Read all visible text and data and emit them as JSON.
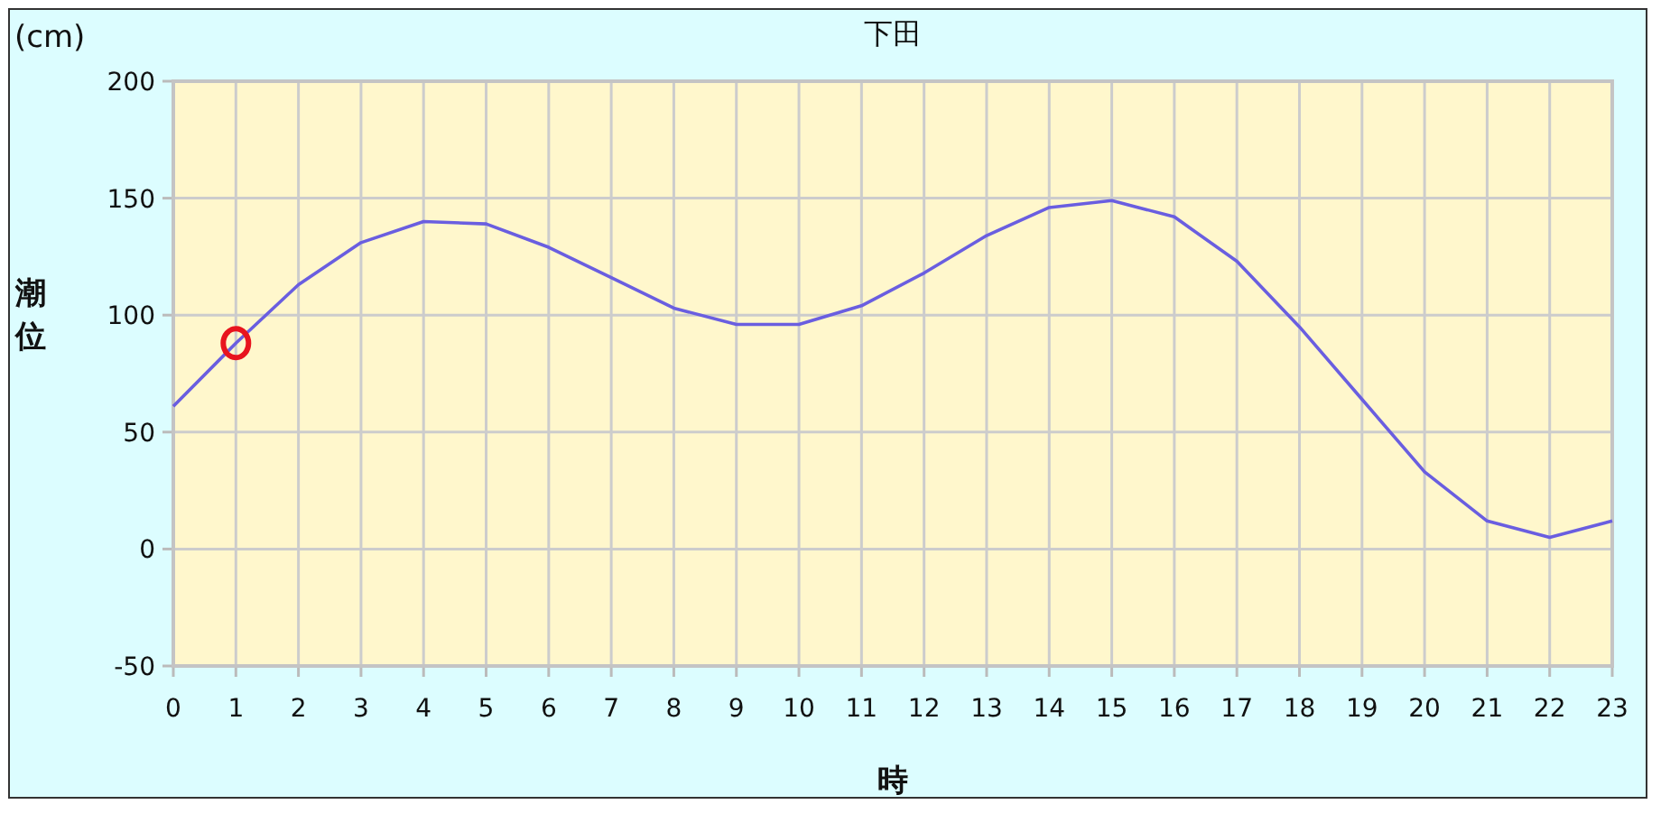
{
  "chart_data": {
    "type": "line",
    "title": "下田",
    "xlabel": "時",
    "ylabel": "潮位",
    "annotations": [
      "(cm)"
    ],
    "x": [
      0,
      1,
      2,
      3,
      4,
      5,
      6,
      7,
      8,
      9,
      10,
      11,
      12,
      13,
      14,
      15,
      16,
      17,
      18,
      19,
      20,
      21,
      22,
      23
    ],
    "series": [
      {
        "color": "#6a5ee0",
        "values": [
          61,
          88,
          113,
          131,
          140,
          139,
          129,
          116,
          103,
          96,
          96,
          104,
          118,
          134,
          146,
          149,
          142,
          123,
          95,
          64,
          33,
          12,
          5,
          12
        ]
      },
      {
        "type": "scatter",
        "marker": "circle",
        "color": "#e8141e",
        "x": [
          1
        ],
        "values": [
          88
        ]
      }
    ],
    "xlim": [
      0,
      23
    ],
    "xticks": [
      0,
      1,
      2,
      3,
      4,
      5,
      6,
      7,
      8,
      9,
      10,
      11,
      12,
      13,
      14,
      15,
      16,
      17,
      18,
      19,
      20,
      21,
      22,
      23
    ],
    "ylim": [
      -50,
      200
    ],
    "yticks": [
      -50,
      0,
      50,
      100,
      150,
      200
    ],
    "grid": true
  }
}
